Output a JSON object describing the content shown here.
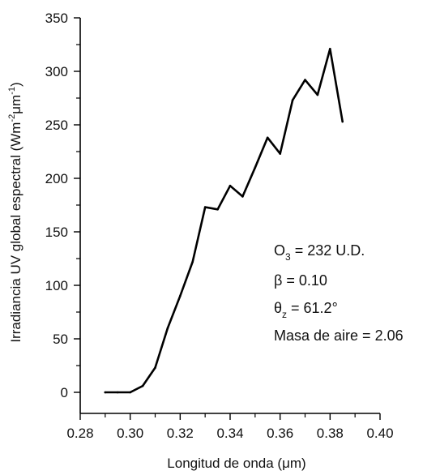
{
  "chart_data": {
    "type": "line",
    "xlabel_text": "Longitud de onda (",
    "xlabel_unit": "μm",
    "xlabel_end": ")",
    "ylabel_text": "Irradiancia UV global espectral (Wm",
    "ylabel_exp1": "-2",
    "ylabel_mid": "μm",
    "ylabel_exp2": "-1",
    "ylabel_end": ")",
    "xlim": [
      0.28,
      0.4
    ],
    "ylim": [
      0,
      350
    ],
    "x_ticks": [
      "0.28",
      "0.30",
      "0.32",
      "0.34",
      "0.36",
      "0.38",
      "0.40"
    ],
    "y_ticks": [
      "0",
      "50",
      "100",
      "150",
      "200",
      "250",
      "300",
      "350"
    ],
    "grid": false,
    "series": [
      {
        "x": [
          0.29,
          0.295,
          0.3,
          0.305,
          0.31,
          0.315,
          0.32,
          0.325,
          0.33,
          0.335,
          0.34,
          0.345,
          0.35,
          0.355,
          0.36,
          0.365,
          0.37,
          0.375,
          0.38,
          0.385
        ],
        "values": [
          0,
          0,
          0,
          6,
          23,
          60,
          90,
          122,
          173,
          171,
          193,
          183,
          210,
          238,
          223,
          273,
          292,
          278,
          321,
          253
        ],
        "color": "#000000"
      }
    ],
    "annotations": {
      "o3_symbol": "O",
      "o3_sub": "3",
      "o3_value": " = 232 U.D.",
      "beta_symbol": "β",
      "beta_value": " =  0.10",
      "theta_symbol": "θ",
      "theta_sub": "z",
      "theta_value": " = 61.2°",
      "airmass": "Masa de aire = 2.06"
    }
  }
}
